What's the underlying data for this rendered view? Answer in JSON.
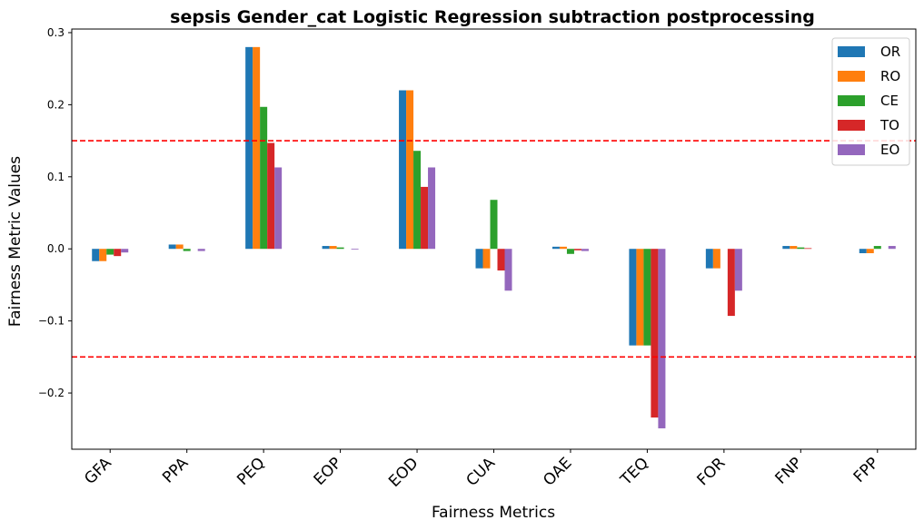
{
  "chart_data": {
    "type": "bar",
    "title": "sepsis Gender_cat Logistic Regression subtraction postprocessing",
    "xlabel": "Fairness Metrics",
    "ylabel": "Fairness Metric Values",
    "ylim": [
      -0.278,
      0.305
    ],
    "yticks": [
      -0.2,
      -0.1,
      0.0,
      0.1,
      0.2,
      0.3
    ],
    "ytick_labels": [
      "−0.2",
      "−0.1",
      "0.0",
      "0.1",
      "0.2",
      "0.3"
    ],
    "categories": [
      "GFA",
      "PPA",
      "PEQ",
      "EOP",
      "EOD",
      "CUA",
      "OAE",
      "TEQ",
      "FOR",
      "FNP",
      "FPP"
    ],
    "series": [
      {
        "name": "OR",
        "color": "#1f77b4",
        "values": [
          -0.017,
          0.006,
          0.28,
          0.004,
          0.22,
          -0.027,
          0.003,
          -0.134,
          -0.027,
          0.004,
          -0.006
        ]
      },
      {
        "name": "RO",
        "color": "#ff7f0e",
        "values": [
          -0.017,
          0.006,
          0.28,
          0.004,
          0.22,
          -0.027,
          0.003,
          -0.134,
          -0.027,
          0.004,
          -0.006
        ]
      },
      {
        "name": "CE",
        "color": "#2ca02c",
        "values": [
          -0.008,
          -0.003,
          0.197,
          0.002,
          0.136,
          0.068,
          -0.007,
          -0.134,
          0.0,
          0.002,
          0.004
        ]
      },
      {
        "name": "TO",
        "color": "#d62728",
        "values": [
          -0.01,
          0.0,
          0.147,
          0.0,
          0.086,
          -0.03,
          -0.002,
          -0.234,
          -0.093,
          0.001,
          0.0
        ]
      },
      {
        "name": "EO",
        "color": "#9467bd",
        "values": [
          -0.005,
          -0.003,
          0.113,
          -0.001,
          0.113,
          -0.058,
          -0.003,
          -0.249,
          -0.058,
          0.0,
          0.004
        ]
      }
    ],
    "threshold_lines": [
      0.15,
      -0.15
    ],
    "threshold_color": "#ff0000",
    "legend_position": "top-right",
    "grid": false
  }
}
